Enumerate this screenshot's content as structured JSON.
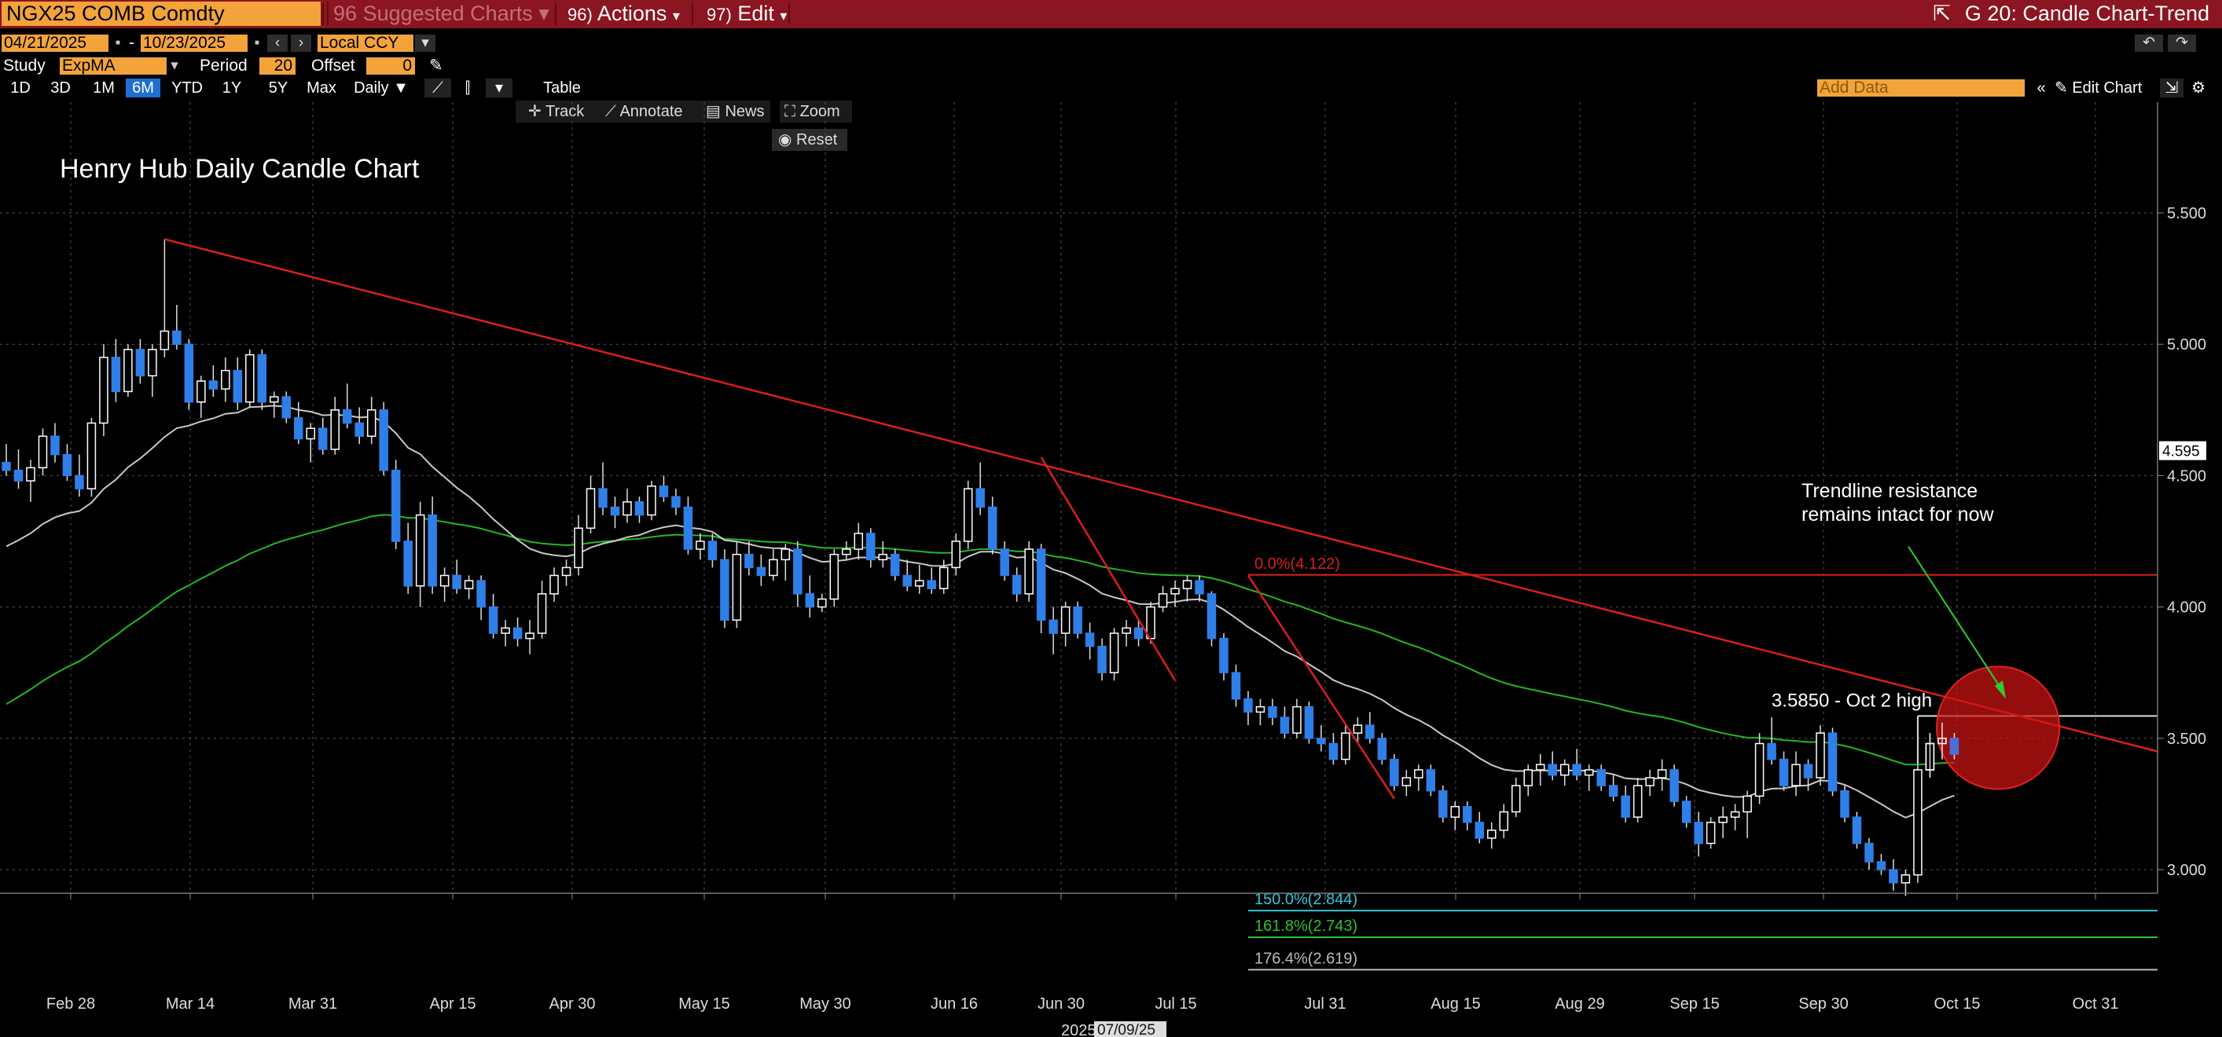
{
  "toolbar": {
    "ticker": "NGX25 COMB Comdty",
    "suggested": "Suggested Charts",
    "suggested_num": "96",
    "actions_num": "96)",
    "actions": "Actions",
    "edit_num": "97)",
    "edit": "Edit",
    "screen_title": "G 20: Candle Chart-Trend"
  },
  "params": {
    "start_date": "04/21/2025",
    "end_date": "10/23/2025",
    "currency": "Local CCY",
    "study_label": "Study",
    "study_value": "ExpMA",
    "period_label": "Period",
    "period_value": "20",
    "offset_label": "Offset",
    "offset_value": "0"
  },
  "timeframes": [
    "1D",
    "3D",
    "1M",
    "6M",
    "YTD",
    "1Y",
    "5Y",
    "Max"
  ],
  "active_timeframe": "6M",
  "frequency": "Daily",
  "table_label": "Table",
  "add_data_placeholder": "Add Data",
  "edit_chart": "Edit Chart",
  "tools": {
    "track": "Track",
    "annotate": "Annotate",
    "news": "News",
    "zoom": "Zoom",
    "reset": "Reset"
  },
  "colors": {
    "up": "#ffffff",
    "down": "#2f7fe8",
    "ema20": "#c8c8c8",
    "ema_long": "#22b822",
    "trend": "#d81e1e",
    "fib0": "#d81e1e",
    "fib150": "#30c8d8",
    "fib161": "#30c030",
    "fib176": "#bbbbbb",
    "accent": "#f2a33a",
    "header": "#8b1520"
  },
  "chart_data": {
    "type": "candlestick",
    "title": "Henry Hub Daily Candle Chart",
    "ylim": [
      2.45,
      5.95
    ],
    "yticks": [
      "5.500",
      "5.000",
      "4.500",
      "4.000",
      "3.500",
      "3.000"
    ],
    "xticks": [
      "Feb 28",
      "Mar 14",
      "Mar 31",
      "Apr 15",
      "Apr 30",
      "May 15",
      "May 30",
      "Jun 16",
      "Jun 30",
      "Jul 15",
      "Jul 31",
      "Aug 15",
      "Aug 29",
      "Sep 15",
      "Sep 30",
      "Oct 15",
      "Oct 31"
    ],
    "year_label": "2025",
    "crosshair_date": "07/09/25",
    "last_price": "4.595",
    "candles": [
      [
        4.55,
        4.62,
        4.5,
        4.52
      ],
      [
        4.52,
        4.6,
        4.45,
        4.48
      ],
      [
        4.48,
        4.56,
        4.4,
        4.53
      ],
      [
        4.53,
        4.68,
        4.5,
        4.65
      ],
      [
        4.65,
        4.7,
        4.55,
        4.58
      ],
      [
        4.58,
        4.62,
        4.48,
        4.5
      ],
      [
        4.5,
        4.58,
        4.42,
        4.45
      ],
      [
        4.45,
        4.72,
        4.42,
        4.7
      ],
      [
        4.7,
        5.0,
        4.65,
        4.95
      ],
      [
        4.95,
        5.02,
        4.78,
        4.82
      ],
      [
        4.82,
        5.0,
        4.8,
        4.98
      ],
      [
        4.98,
        5.02,
        4.85,
        4.88
      ],
      [
        4.88,
        5.0,
        4.8,
        4.98
      ],
      [
        4.98,
        5.4,
        4.95,
        5.05
      ],
      [
        5.05,
        5.15,
        4.98,
        5.0
      ],
      [
        5.0,
        5.02,
        4.75,
        4.78
      ],
      [
        4.78,
        4.88,
        4.72,
        4.86
      ],
      [
        4.86,
        4.92,
        4.8,
        4.83
      ],
      [
        4.83,
        4.95,
        4.78,
        4.9
      ],
      [
        4.9,
        4.95,
        4.75,
        4.78
      ],
      [
        4.78,
        4.98,
        4.76,
        4.96
      ],
      [
        4.96,
        4.98,
        4.75,
        4.78
      ],
      [
        4.78,
        4.82,
        4.72,
        4.8
      ],
      [
        4.8,
        4.82,
        4.7,
        4.72
      ],
      [
        4.72,
        4.78,
        4.62,
        4.64
      ],
      [
        4.64,
        4.7,
        4.55,
        4.68
      ],
      [
        4.68,
        4.72,
        4.58,
        4.6
      ],
      [
        4.6,
        4.8,
        4.58,
        4.75
      ],
      [
        4.75,
        4.85,
        4.68,
        4.7
      ],
      [
        4.7,
        4.76,
        4.62,
        4.65
      ],
      [
        4.65,
        4.8,
        4.62,
        4.75
      ],
      [
        4.75,
        4.78,
        4.5,
        4.52
      ],
      [
        4.52,
        4.56,
        4.22,
        4.25
      ],
      [
        4.25,
        4.32,
        4.05,
        4.08
      ],
      [
        4.08,
        4.4,
        4.0,
        4.35
      ],
      [
        4.35,
        4.42,
        4.05,
        4.08
      ],
      [
        4.08,
        4.15,
        4.02,
        4.12
      ],
      [
        4.12,
        4.18,
        4.05,
        4.07
      ],
      [
        4.07,
        4.12,
        4.03,
        4.1
      ],
      [
        4.1,
        4.12,
        3.95,
        4.0
      ],
      [
        4.0,
        4.05,
        3.88,
        3.9
      ],
      [
        3.9,
        3.95,
        3.85,
        3.92
      ],
      [
        3.92,
        3.96,
        3.85,
        3.88
      ],
      [
        3.88,
        3.95,
        3.82,
        3.9
      ],
      [
        3.9,
        4.1,
        3.88,
        4.05
      ],
      [
        4.05,
        4.15,
        4.02,
        4.12
      ],
      [
        4.12,
        4.18,
        4.08,
        4.15
      ],
      [
        4.15,
        4.35,
        4.12,
        4.3
      ],
      [
        4.3,
        4.5,
        4.28,
        4.45
      ],
      [
        4.45,
        4.55,
        4.35,
        4.38
      ],
      [
        4.38,
        4.42,
        4.3,
        4.35
      ],
      [
        4.35,
        4.45,
        4.32,
        4.4
      ],
      [
        4.4,
        4.42,
        4.32,
        4.35
      ],
      [
        4.35,
        4.48,
        4.33,
        4.46
      ],
      [
        4.46,
        4.5,
        4.4,
        4.42
      ],
      [
        4.42,
        4.45,
        4.35,
        4.38
      ],
      [
        4.38,
        4.42,
        4.2,
        4.22
      ],
      [
        4.22,
        4.28,
        4.18,
        4.25
      ],
      [
        4.25,
        4.28,
        4.15,
        4.18
      ],
      [
        4.18,
        4.22,
        3.92,
        3.95
      ],
      [
        3.95,
        4.25,
        3.92,
        4.2
      ],
      [
        4.2,
        4.25,
        4.12,
        4.15
      ],
      [
        4.15,
        4.2,
        4.08,
        4.12
      ],
      [
        4.12,
        4.22,
        4.1,
        4.18
      ],
      [
        4.18,
        4.24,
        4.1,
        4.22
      ],
      [
        4.22,
        4.25,
        4.0,
        4.05
      ],
      [
        4.05,
        4.12,
        3.96,
        4.0
      ],
      [
        4.0,
        4.05,
        3.98,
        4.03
      ],
      [
        4.03,
        4.22,
        4.0,
        4.2
      ],
      [
        4.2,
        4.25,
        4.18,
        4.22
      ],
      [
        4.22,
        4.32,
        4.18,
        4.28
      ],
      [
        4.28,
        4.3,
        4.15,
        4.18
      ],
      [
        4.18,
        4.25,
        4.15,
        4.2
      ],
      [
        4.2,
        4.22,
        4.1,
        4.12
      ],
      [
        4.12,
        4.18,
        4.06,
        4.08
      ],
      [
        4.08,
        4.16,
        4.05,
        4.1
      ],
      [
        4.1,
        4.15,
        4.05,
        4.07
      ],
      [
        4.07,
        4.18,
        4.05,
        4.15
      ],
      [
        4.15,
        4.28,
        4.12,
        4.25
      ],
      [
        4.25,
        4.48,
        4.22,
        4.45
      ],
      [
        4.45,
        4.55,
        4.35,
        4.38
      ],
      [
        4.38,
        4.42,
        4.2,
        4.22
      ],
      [
        4.22,
        4.25,
        4.1,
        4.12
      ],
      [
        4.12,
        4.15,
        4.02,
        4.05
      ],
      [
        4.05,
        4.25,
        4.02,
        4.22
      ],
      [
        4.22,
        4.24,
        3.9,
        3.95
      ],
      [
        3.95,
        4.0,
        3.82,
        3.9
      ],
      [
        3.9,
        4.02,
        3.85,
        4.0
      ],
      [
        4.0,
        4.02,
        3.88,
        3.9
      ],
      [
        3.9,
        3.94,
        3.8,
        3.85
      ],
      [
        3.85,
        3.88,
        3.72,
        3.75
      ],
      [
        3.75,
        3.92,
        3.72,
        3.9
      ],
      [
        3.9,
        3.95,
        3.85,
        3.92
      ],
      [
        3.92,
        3.95,
        3.85,
        3.88
      ],
      [
        3.88,
        4.02,
        3.86,
        4.0
      ],
      [
        4.0,
        4.08,
        3.98,
        4.05
      ],
      [
        4.05,
        4.1,
        4.0,
        4.07
      ],
      [
        4.07,
        4.12,
        4.02,
        4.1
      ],
      [
        4.1,
        4.12,
        4.02,
        4.05
      ],
      [
        4.05,
        4.06,
        3.85,
        3.88
      ],
      [
        3.88,
        3.9,
        3.72,
        3.75
      ],
      [
        3.75,
        3.78,
        3.62,
        3.65
      ],
      [
        3.65,
        3.68,
        3.55,
        3.6
      ],
      [
        3.6,
        3.65,
        3.55,
        3.62
      ],
      [
        3.62,
        3.65,
        3.55,
        3.58
      ],
      [
        3.58,
        3.62,
        3.5,
        3.52
      ],
      [
        3.52,
        3.65,
        3.5,
        3.62
      ],
      [
        3.62,
        3.64,
        3.48,
        3.5
      ],
      [
        3.5,
        3.55,
        3.45,
        3.48
      ],
      [
        3.48,
        3.52,
        3.4,
        3.42
      ],
      [
        3.42,
        3.55,
        3.4,
        3.52
      ],
      [
        3.52,
        3.58,
        3.48,
        3.55
      ],
      [
        3.55,
        3.6,
        3.48,
        3.5
      ],
      [
        3.5,
        3.52,
        3.4,
        3.42
      ],
      [
        3.42,
        3.44,
        3.3,
        3.32
      ],
      [
        3.32,
        3.38,
        3.28,
        3.35
      ],
      [
        3.35,
        3.4,
        3.3,
        3.38
      ],
      [
        3.38,
        3.4,
        3.28,
        3.3
      ],
      [
        3.3,
        3.32,
        3.18,
        3.2
      ],
      [
        3.2,
        3.26,
        3.15,
        3.24
      ],
      [
        3.24,
        3.26,
        3.15,
        3.18
      ],
      [
        3.18,
        3.22,
        3.1,
        3.12
      ],
      [
        3.12,
        3.18,
        3.08,
        3.15
      ],
      [
        3.15,
        3.25,
        3.12,
        3.22
      ],
      [
        3.22,
        3.35,
        3.2,
        3.32
      ],
      [
        3.32,
        3.4,
        3.28,
        3.38
      ],
      [
        3.38,
        3.44,
        3.32,
        3.4
      ],
      [
        3.4,
        3.45,
        3.34,
        3.36
      ],
      [
        3.36,
        3.42,
        3.32,
        3.4
      ],
      [
        3.4,
        3.46,
        3.34,
        3.36
      ],
      [
        3.36,
        3.4,
        3.3,
        3.38
      ],
      [
        3.38,
        3.4,
        3.3,
        3.32
      ],
      [
        3.32,
        3.36,
        3.26,
        3.28
      ],
      [
        3.28,
        3.32,
        3.18,
        3.2
      ],
      [
        3.2,
        3.35,
        3.18,
        3.32
      ],
      [
        3.32,
        3.38,
        3.28,
        3.35
      ],
      [
        3.35,
        3.42,
        3.3,
        3.38
      ],
      [
        3.38,
        3.4,
        3.24,
        3.26
      ],
      [
        3.26,
        3.28,
        3.16,
        3.18
      ],
      [
        3.18,
        3.22,
        3.05,
        3.1
      ],
      [
        3.1,
        3.2,
        3.08,
        3.18
      ],
      [
        3.18,
        3.24,
        3.12,
        3.2
      ],
      [
        3.2,
        3.25,
        3.15,
        3.22
      ],
      [
        3.22,
        3.3,
        3.12,
        3.28
      ],
      [
        3.28,
        3.52,
        3.25,
        3.48
      ],
      [
        3.48,
        3.58,
        3.4,
        3.42
      ],
      [
        3.42,
        3.45,
        3.3,
        3.32
      ],
      [
        3.32,
        3.45,
        3.28,
        3.4
      ],
      [
        3.4,
        3.42,
        3.3,
        3.35
      ],
      [
        3.35,
        3.55,
        3.32,
        3.52
      ],
      [
        3.52,
        3.54,
        3.28,
        3.3
      ],
      [
        3.3,
        3.32,
        3.18,
        3.2
      ],
      [
        3.2,
        3.22,
        3.08,
        3.1
      ],
      [
        3.1,
        3.12,
        3.0,
        3.03
      ],
      [
        3.03,
        3.06,
        2.98,
        3.0
      ],
      [
        3.0,
        3.04,
        2.92,
        2.95
      ],
      [
        2.95,
        3.0,
        2.9,
        2.98
      ],
      [
        2.98,
        3.4,
        2.95,
        3.38
      ],
      [
        3.38,
        3.52,
        3.35,
        3.48
      ],
      [
        3.48,
        3.56,
        3.42,
        3.5
      ],
      [
        3.5,
        3.52,
        3.42,
        3.44
      ]
    ],
    "trendlines": [
      {
        "name": "long-term resistance",
        "from": [
          13,
          5.4
        ],
        "to": [
          176,
          3.42
        ]
      },
      {
        "name": "june selloff trend",
        "from": [
          85,
          4.57
        ],
        "to": [
          96,
          3.72
        ]
      },
      {
        "name": "july selloff trend",
        "from": [
          102,
          4.12
        ],
        "to": [
          114,
          3.27
        ]
      }
    ],
    "fib_levels": [
      {
        "label": "0.0%(4.122)",
        "value": 4.122,
        "from": 102
      },
      {
        "label": "150.0%(2.844)",
        "value": 2.844,
        "from": 102
      },
      {
        "label": "161.8%(2.743)",
        "value": 2.743,
        "from": 102
      },
      {
        "label": "176.4%(2.619)",
        "value": 2.619,
        "from": 102
      }
    ],
    "high_box": {
      "label": "3.5850 - Oct 2 high",
      "value": 3.585,
      "from": 157
    },
    "annotation": {
      "line1": "Trendline resistance",
      "line2": "remains intact for now"
    }
  }
}
